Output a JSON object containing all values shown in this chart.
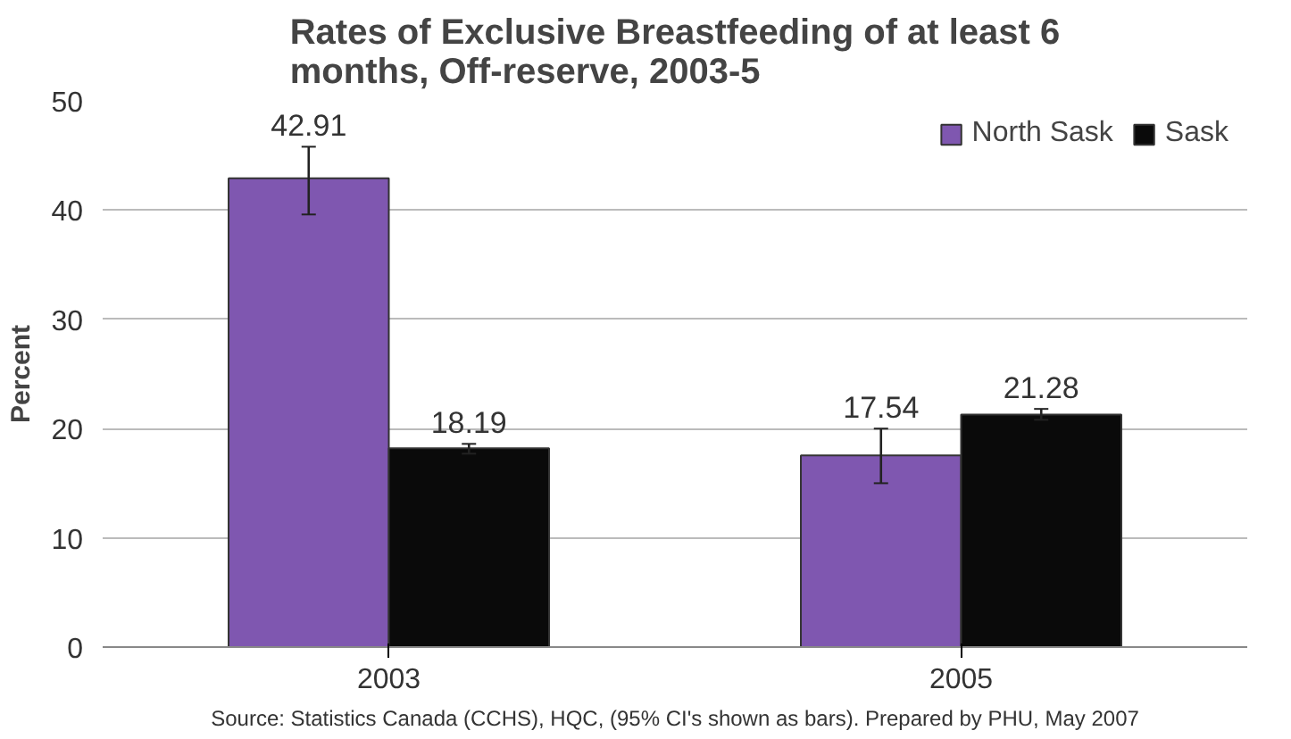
{
  "chart_data": {
    "type": "bar",
    "title": "Rates of Exclusive Breastfeeding of at least 6\nmonths, Off-reserve, 2003-5",
    "ylabel": "Percent",
    "categories": [
      "2003",
      "2005"
    ],
    "series": [
      {
        "name": "North Sask",
        "color": "#7f57b0",
        "values": [
          42.91,
          17.54
        ],
        "errors": [
          [
            39.6,
            45.8
          ],
          [
            15.0,
            20.0
          ]
        ]
      },
      {
        "name": "Sask",
        "color": "#0a0a0a",
        "values": [
          18.19,
          21.28
        ],
        "errors": [
          [
            17.7,
            18.6
          ],
          [
            20.8,
            21.8
          ]
        ]
      }
    ],
    "ylim": [
      0,
      50
    ],
    "yticks": [
      0,
      10,
      20,
      30,
      40,
      50
    ],
    "grid": "y",
    "legend": "top right",
    "data_labels": true,
    "annotations": [
      "Source: Statistics Canada (CCHS), HQC, (95% CI's shown as bars). Prepared by PHU, May 2007"
    ]
  }
}
